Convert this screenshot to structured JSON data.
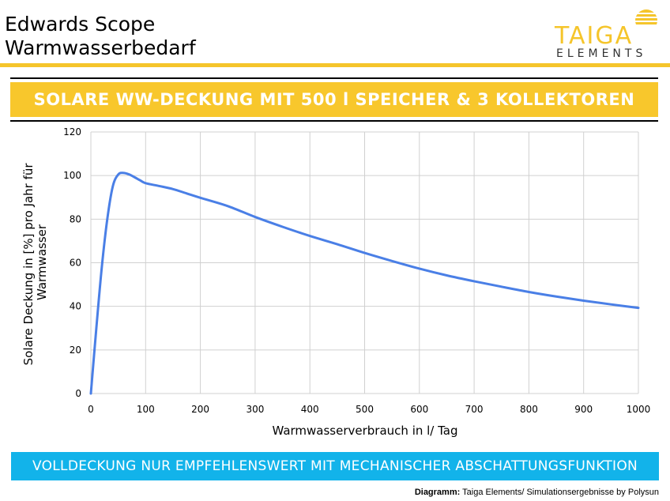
{
  "header": {
    "title_line1": "Edwards Scope",
    "title_line2": "Warmwasserbedarf"
  },
  "logo": {
    "word": "TAIGA",
    "sub": "ELEMENTS"
  },
  "banner": {
    "text": "SOLARE WW-DECKUNG MIT 500 l SPEICHER & 3 KOLLEKTOREN"
  },
  "footer": {
    "text": "VOLLDECKUNG NUR EMPFEHLENSWERT MIT MECHANISCHER ABSCHATTUNGSFUNKTION",
    "source_label": "Diagramm:",
    "source_text": "Taiga Elements/ Simulationsergebnisse by Polysun"
  },
  "colors": {
    "accent_yellow": "#f8c72c",
    "footer_blue": "#12b3ea",
    "line_blue": "#4a7fe6",
    "grid": "#d0d0d0"
  },
  "chart_data": {
    "type": "line",
    "title": "",
    "xlabel": "Warmwasserverbrauch in l/ Tag",
    "ylabel_lines": [
      "Solare Deckung in [%] pro Jahr für",
      "Warmwasser"
    ],
    "xlim": [
      0,
      1000
    ],
    "ylim": [
      0,
      120
    ],
    "x_ticks": [
      0,
      100,
      200,
      300,
      400,
      500,
      600,
      700,
      800,
      900,
      1000
    ],
    "y_ticks": [
      0,
      20,
      40,
      60,
      80,
      100,
      120
    ],
    "grid": true,
    "series": [
      {
        "x": [
          0,
          10,
          20,
          30,
          40,
          50,
          60,
          70,
          80,
          90,
          100,
          125,
          150,
          175,
          200,
          250,
          300,
          350,
          400,
          450,
          500,
          550,
          600,
          650,
          700,
          750,
          800,
          850,
          900,
          950,
          1000
        ],
        "y": [
          0,
          30,
          58,
          80,
          95,
          100.5,
          101.2,
          100.5,
          99.2,
          97.8,
          96.5,
          95.2,
          93.8,
          91.8,
          89.8,
          86,
          81,
          76.5,
          72.3,
          68.5,
          64.5,
          60.8,
          57.3,
          54.2,
          51.5,
          49,
          46.6,
          44.5,
          42.6,
          40.9,
          39.3
        ]
      }
    ]
  }
}
